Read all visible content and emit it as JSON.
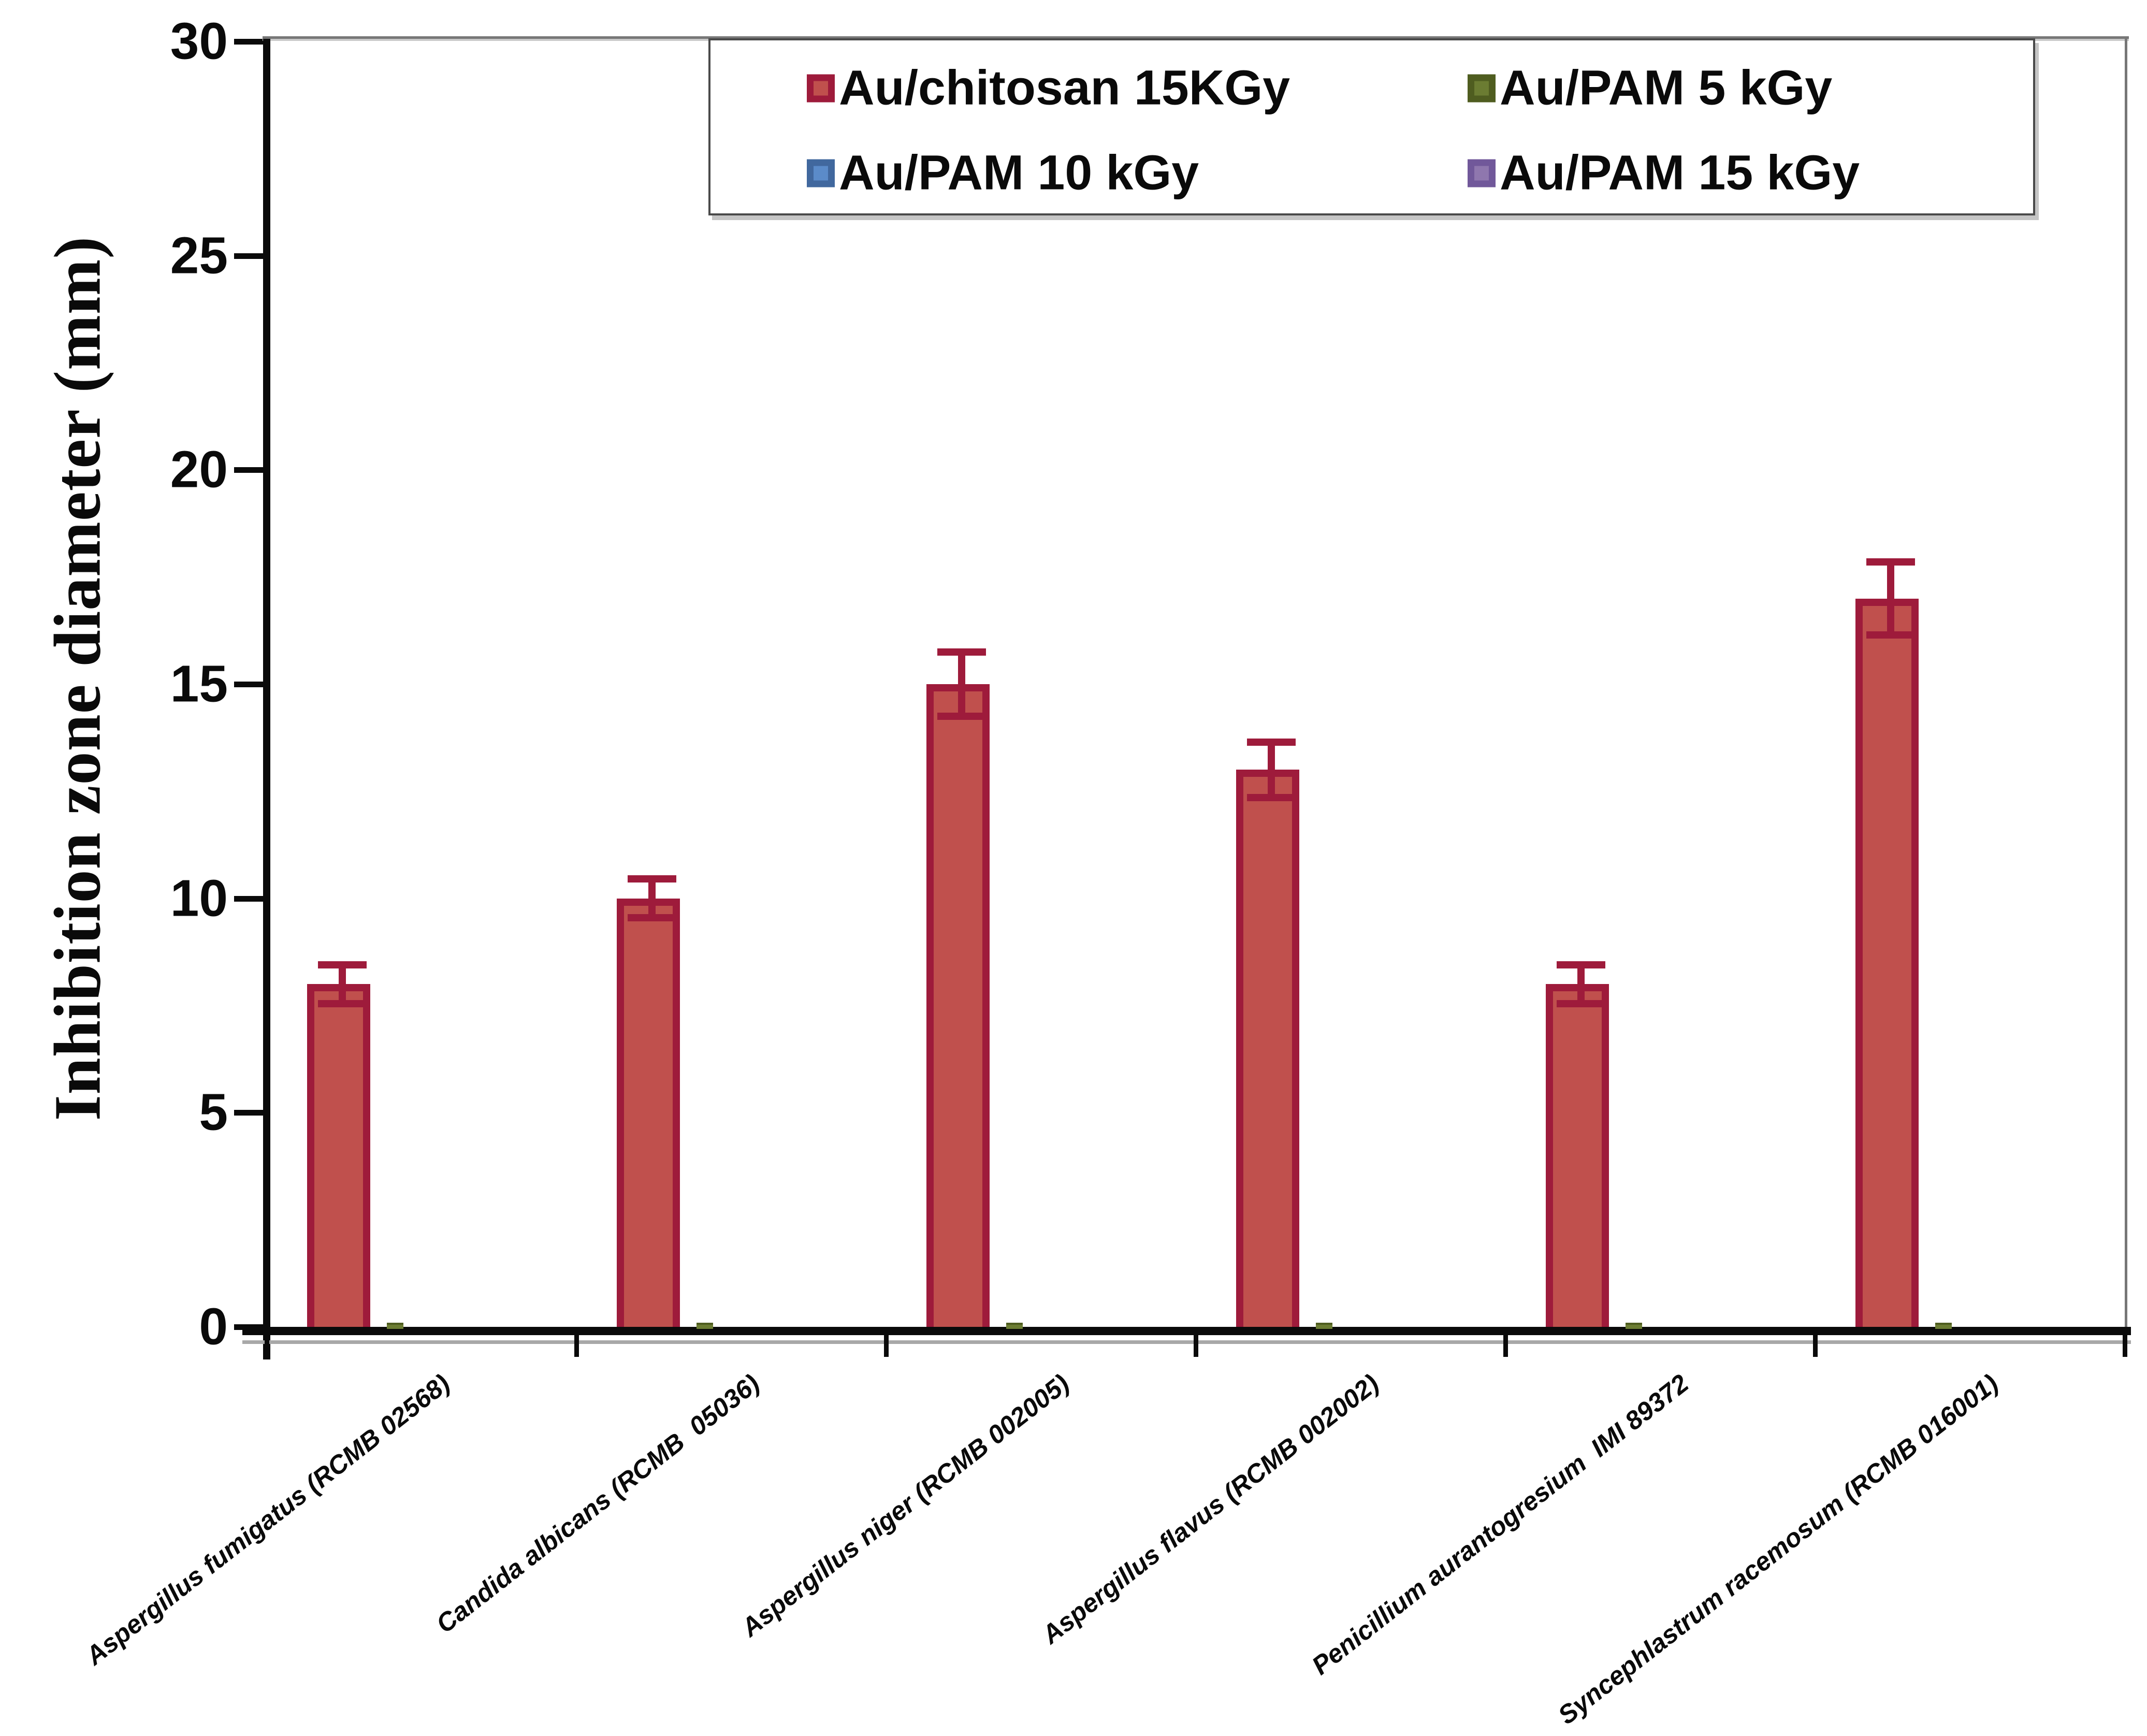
{
  "chart_data": {
    "type": "bar",
    "title": "",
    "xlabel": "",
    "ylabel": "Inhibition zone diameter (mm)",
    "ylim": [
      0,
      30
    ],
    "yticks": [
      0,
      5,
      10,
      15,
      20,
      25,
      30
    ],
    "grid": false,
    "legend_position": "top-center-inside",
    "categories": [
      "Aspergillus fumigatus (RCMB 02568)",
      "Candida albicans (RCMB  05036)",
      "Aspergillus niger (RCMB 002005)",
      "Aspergillus flavus (RCMB 002002)",
      "Penicillium aurantogresium  IMI 89372",
      "Syncephlastrum racemosum (RCMB 016001)"
    ],
    "series": [
      {
        "name": "Au/chitosan 15KGy",
        "fill": "#C0504D",
        "border": "#9E1B3B",
        "values": [
          8,
          10,
          15,
          13,
          8,
          17
        ],
        "errors": [
          0.5,
          0.5,
          0.8,
          0.7,
          0.5,
          0.9
        ]
      },
      {
        "name": "Au/PAM 5 kGy",
        "fill": "#6B7C32",
        "border": "#4F5D20",
        "values": [
          0.1,
          0.1,
          0.1,
          0.1,
          0.1,
          0.1
        ],
        "errors": [
          0,
          0,
          0,
          0,
          0,
          0
        ]
      },
      {
        "name": "Au/PAM 10 kGy",
        "fill": "#5B8BC9",
        "border": "#41689E",
        "values": [
          0,
          0,
          0,
          0,
          0,
          0
        ],
        "errors": [
          0,
          0,
          0,
          0,
          0,
          0
        ]
      },
      {
        "name": "Au/PAM 15 kGy",
        "fill": "#8F77AE",
        "border": "#71589A",
        "values": [
          0,
          0,
          0,
          0,
          0,
          0
        ],
        "errors": [
          0,
          0,
          0,
          0,
          0,
          0
        ]
      }
    ],
    "axis_color": "#0a0a0a",
    "frame_color": "#777777"
  }
}
